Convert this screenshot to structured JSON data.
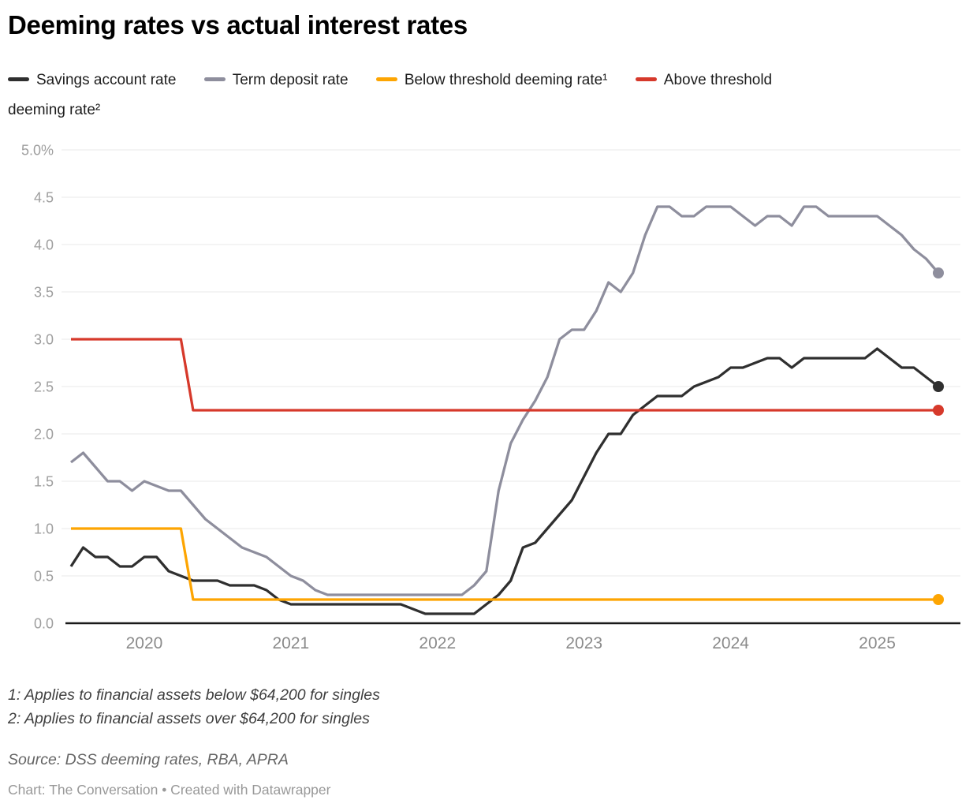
{
  "title": "Deeming rates vs actual interest rates",
  "legend": {
    "items": [
      {
        "label": "Savings account rate",
        "color": "#2f2f2f"
      },
      {
        "label": "Term deposit rate",
        "color": "#8e8e9d"
      },
      {
        "label": "Below threshold deeming rate¹",
        "color": "#fda502"
      },
      {
        "label": "Above threshold\ndeeming rate²",
        "color": "#d6392b"
      }
    ]
  },
  "footnotes": {
    "line1": "1: Applies to financial assets below $64,200 for singles",
    "line2": "2: Applies to financial assets over $64,200 for singles"
  },
  "source": "Source: DSS deeming rates, RBA, APRA",
  "credit": "Chart: The Conversation • Created with Datawrapper",
  "chart_data": {
    "type": "line",
    "title": "Deeming rates vs actual interest rates",
    "unit": "%",
    "frequency": "monthly",
    "x_start": "2019-07",
    "x_end": "2025-06",
    "xlabel": "",
    "ylabel": "",
    "ylim": [
      0,
      5
    ],
    "grid": "horizontal",
    "legend_position": "top",
    "y_ticks": [
      "5.0%",
      "4.5",
      "4.0",
      "3.5",
      "3.0",
      "2.5",
      "2.0",
      "1.5",
      "1.0",
      "0.5",
      "0.0"
    ],
    "x_year_ticks": [
      "2020",
      "2021",
      "2022",
      "2023",
      "2024",
      "2025"
    ],
    "series": [
      {
        "name": "Savings account rate",
        "color": "#2f2f2f",
        "end_value": 2.5,
        "values": [
          0.6,
          0.8,
          0.7,
          0.7,
          0.6,
          0.6,
          0.7,
          0.7,
          0.55,
          0.5,
          0.45,
          0.45,
          0.45,
          0.4,
          0.4,
          0.4,
          0.35,
          0.25,
          0.2,
          0.2,
          0.2,
          0.2,
          0.2,
          0.2,
          0.2,
          0.2,
          0.2,
          0.2,
          0.15,
          0.1,
          0.1,
          0.1,
          0.1,
          0.1,
          0.2,
          0.3,
          0.45,
          0.8,
          0.85,
          1.0,
          1.15,
          1.3,
          1.55,
          1.8,
          2.0,
          2.0,
          2.2,
          2.3,
          2.4,
          2.4,
          2.4,
          2.5,
          2.55,
          2.6,
          2.7,
          2.7,
          2.75,
          2.8,
          2.8,
          2.7,
          2.8,
          2.8,
          2.8,
          2.8,
          2.8,
          2.8,
          2.9,
          2.8,
          2.7,
          2.7,
          2.6,
          2.5
        ]
      },
      {
        "name": "Term deposit rate",
        "color": "#8e8e9d",
        "end_value": 3.7,
        "values": [
          1.7,
          1.8,
          1.65,
          1.5,
          1.5,
          1.4,
          1.5,
          1.45,
          1.4,
          1.4,
          1.25,
          1.1,
          1.0,
          0.9,
          0.8,
          0.75,
          0.7,
          0.6,
          0.5,
          0.45,
          0.35,
          0.3,
          0.3,
          0.3,
          0.3,
          0.3,
          0.3,
          0.3,
          0.3,
          0.3,
          0.3,
          0.3,
          0.3,
          0.4,
          0.55,
          1.4,
          1.9,
          2.15,
          2.35,
          2.6,
          3.0,
          3.1,
          3.1,
          3.3,
          3.6,
          3.5,
          3.7,
          4.1,
          4.4,
          4.4,
          4.3,
          4.3,
          4.4,
          4.4,
          4.4,
          4.3,
          4.2,
          4.3,
          4.3,
          4.2,
          4.4,
          4.4,
          4.3,
          4.3,
          4.3,
          4.3,
          4.3,
          4.2,
          4.1,
          3.95,
          3.85,
          3.7
        ]
      },
      {
        "name": "Below threshold deeming rate¹",
        "color": "#fda502",
        "end_value": 0.25,
        "values": [
          1.0,
          1.0,
          1.0,
          1.0,
          1.0,
          1.0,
          1.0,
          1.0,
          1.0,
          1.0,
          0.25,
          0.25,
          0.25,
          0.25,
          0.25,
          0.25,
          0.25,
          0.25,
          0.25,
          0.25,
          0.25,
          0.25,
          0.25,
          0.25,
          0.25,
          0.25,
          0.25,
          0.25,
          0.25,
          0.25,
          0.25,
          0.25,
          0.25,
          0.25,
          0.25,
          0.25,
          0.25,
          0.25,
          0.25,
          0.25,
          0.25,
          0.25,
          0.25,
          0.25,
          0.25,
          0.25,
          0.25,
          0.25,
          0.25,
          0.25,
          0.25,
          0.25,
          0.25,
          0.25,
          0.25,
          0.25,
          0.25,
          0.25,
          0.25,
          0.25,
          0.25,
          0.25,
          0.25,
          0.25,
          0.25,
          0.25,
          0.25,
          0.25,
          0.25,
          0.25,
          0.25,
          0.25
        ]
      },
      {
        "name": "Above threshold deeming rate²",
        "color": "#d6392b",
        "end_value": 2.25,
        "values": [
          3.0,
          3.0,
          3.0,
          3.0,
          3.0,
          3.0,
          3.0,
          3.0,
          3.0,
          3.0,
          2.25,
          2.25,
          2.25,
          2.25,
          2.25,
          2.25,
          2.25,
          2.25,
          2.25,
          2.25,
          2.25,
          2.25,
          2.25,
          2.25,
          2.25,
          2.25,
          2.25,
          2.25,
          2.25,
          2.25,
          2.25,
          2.25,
          2.25,
          2.25,
          2.25,
          2.25,
          2.25,
          2.25,
          2.25,
          2.25,
          2.25,
          2.25,
          2.25,
          2.25,
          2.25,
          2.25,
          2.25,
          2.25,
          2.25,
          2.25,
          2.25,
          2.25,
          2.25,
          2.25,
          2.25,
          2.25,
          2.25,
          2.25,
          2.25,
          2.25,
          2.25,
          2.25,
          2.25,
          2.25,
          2.25,
          2.25,
          2.25,
          2.25,
          2.25,
          2.25,
          2.25,
          2.25
        ]
      }
    ]
  }
}
